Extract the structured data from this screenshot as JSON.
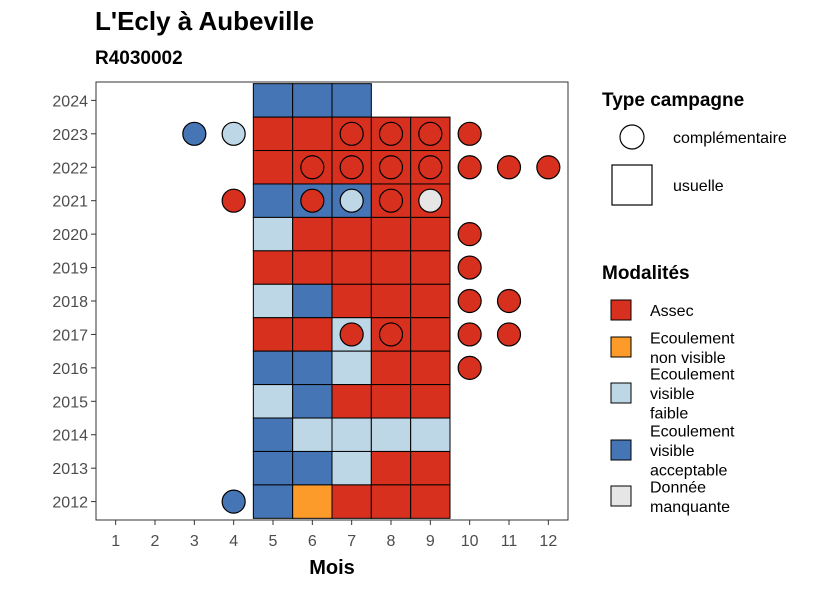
{
  "chart_data": {
    "type": "heatmap",
    "title": "L'Ecly à Aubeville",
    "subtitle": "R4030002",
    "xlabel": "Mois",
    "ylabel": "",
    "x_ticks": [
      "1",
      "2",
      "3",
      "4",
      "5",
      "6",
      "7",
      "8",
      "9",
      "10",
      "11",
      "12"
    ],
    "y_ticks": [
      "2012",
      "2013",
      "2014",
      "2015",
      "2016",
      "2017",
      "2018",
      "2019",
      "2020",
      "2021",
      "2022",
      "2023",
      "2024"
    ],
    "xlim": [
      0.5,
      12.5
    ],
    "ylim": [
      2011.45,
      2024.55
    ],
    "grid": false,
    "legend_position": "right",
    "legend_shape": {
      "title": "Type campagne",
      "items": [
        {
          "key": "complementaire",
          "label": "complémentaire",
          "shape": "circle"
        },
        {
          "key": "usuelle",
          "label": "usuelle",
          "shape": "square"
        }
      ]
    },
    "legend_fill": {
      "title": "Modalités",
      "items": [
        {
          "key": "assec",
          "lines": [
            "Assec"
          ],
          "color": "#d7301f"
        },
        {
          "key": "nonvisible",
          "lines": [
            "Ecoulement",
            "non visible"
          ],
          "color": "#fd9b2a"
        },
        {
          "key": "faible",
          "lines": [
            "Ecoulement",
            "visible",
            "faible"
          ],
          "color": "#bdd7e7"
        },
        {
          "key": "acceptable",
          "lines": [
            "Ecoulement",
            "visible",
            "acceptable"
          ],
          "color": "#4575b4"
        },
        {
          "key": "manquante",
          "lines": [
            "Donnée",
            "manquante"
          ],
          "color": "#e6e6e6"
        }
      ]
    },
    "usuelle": [
      {
        "year": 2024,
        "months": [
          "acceptable",
          "acceptable",
          "acceptable",
          null,
          null
        ]
      },
      {
        "year": 2023,
        "months": [
          "assec",
          "assec",
          "assec",
          "assec",
          "assec"
        ]
      },
      {
        "year": 2022,
        "months": [
          "assec",
          "assec",
          "assec",
          "assec",
          "assec"
        ]
      },
      {
        "year": 2021,
        "months": [
          "acceptable",
          "acceptable",
          "acceptable",
          "assec",
          "assec"
        ]
      },
      {
        "year": 2020,
        "months": [
          "faible",
          "assec",
          "assec",
          "assec",
          "assec"
        ]
      },
      {
        "year": 2019,
        "months": [
          "assec",
          "assec",
          "assec",
          "assec",
          "assec"
        ]
      },
      {
        "year": 2018,
        "months": [
          "faible",
          "acceptable",
          "assec",
          "assec",
          "assec"
        ]
      },
      {
        "year": 2017,
        "months": [
          "assec",
          "assec",
          "faible",
          "assec",
          "assec"
        ]
      },
      {
        "year": 2016,
        "months": [
          "acceptable",
          "acceptable",
          "faible",
          "assec",
          "assec"
        ]
      },
      {
        "year": 2015,
        "months": [
          "faible",
          "acceptable",
          "assec",
          "assec",
          "assec"
        ]
      },
      {
        "year": 2014,
        "months": [
          "acceptable",
          "faible",
          "faible",
          "faible",
          "faible"
        ]
      },
      {
        "year": 2013,
        "months": [
          "acceptable",
          "acceptable",
          "faible",
          "assec",
          "assec"
        ]
      },
      {
        "year": 2012,
        "months": [
          "acceptable",
          "nonvisible",
          "assec",
          "assec",
          "assec"
        ]
      }
    ],
    "usuelle_month_start": 5,
    "complementaire": [
      {
        "year": 2023,
        "month": 3,
        "mod": "acceptable"
      },
      {
        "year": 2023,
        "month": 4,
        "mod": "faible"
      },
      {
        "year": 2023,
        "month": 7,
        "mod": "assec"
      },
      {
        "year": 2023,
        "month": 8,
        "mod": "assec"
      },
      {
        "year": 2023,
        "month": 9,
        "mod": "assec"
      },
      {
        "year": 2023,
        "month": 10,
        "mod": "assec"
      },
      {
        "year": 2022,
        "month": 6,
        "mod": "assec"
      },
      {
        "year": 2022,
        "month": 7,
        "mod": "assec"
      },
      {
        "year": 2022,
        "month": 8,
        "mod": "assec"
      },
      {
        "year": 2022,
        "month": 9,
        "mod": "assec"
      },
      {
        "year": 2022,
        "month": 10,
        "mod": "assec"
      },
      {
        "year": 2022,
        "month": 11,
        "mod": "assec"
      },
      {
        "year": 2022,
        "month": 12,
        "mod": "assec"
      },
      {
        "year": 2021,
        "month": 4,
        "mod": "assec"
      },
      {
        "year": 2021,
        "month": 6,
        "mod": "assec"
      },
      {
        "year": 2021,
        "month": 7,
        "mod": "faible"
      },
      {
        "year": 2021,
        "month": 8,
        "mod": "assec"
      },
      {
        "year": 2021,
        "month": 9,
        "mod": "manquante"
      },
      {
        "year": 2020,
        "month": 10,
        "mod": "assec"
      },
      {
        "year": 2019,
        "month": 10,
        "mod": "assec"
      },
      {
        "year": 2018,
        "month": 10,
        "mod": "assec"
      },
      {
        "year": 2018,
        "month": 11,
        "mod": "assec"
      },
      {
        "year": 2017,
        "month": 7,
        "mod": "assec"
      },
      {
        "year": 2017,
        "month": 8,
        "mod": "assec"
      },
      {
        "year": 2017,
        "month": 10,
        "mod": "assec"
      },
      {
        "year": 2017,
        "month": 11,
        "mod": "assec"
      },
      {
        "year": 2016,
        "month": 10,
        "mod": "assec"
      },
      {
        "year": 2012,
        "month": 4,
        "mod": "acceptable"
      }
    ]
  }
}
